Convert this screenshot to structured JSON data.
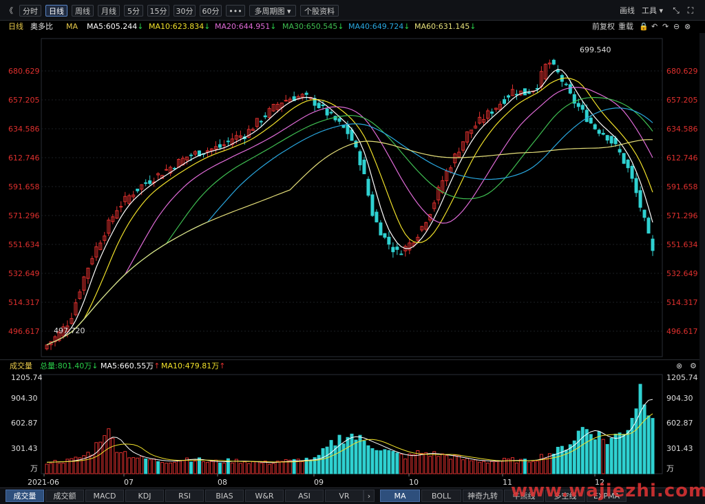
{
  "toolbar": {
    "back": "《",
    "tabs": [
      "分时",
      "日线",
      "周线",
      "月线",
      "5分",
      "15分",
      "30分",
      "60分",
      "•••",
      "多周期图 ▾",
      "个股资料"
    ],
    "active_tab": "日线",
    "right_draw": "画线",
    "right_tools": "工具 ▾",
    "expand_icon": "expand-arrows-icon",
    "fullscreen_icon": "fullscreen-icon"
  },
  "info": {
    "period": "日线",
    "name": "奥多比",
    "ma_label": "MA",
    "ma5": "MA5:605.244",
    "ma10": "MA10:623.834",
    "ma20": "MA20:644.951",
    "ma30": "MA30:650.545",
    "ma40": "MA40:649.724",
    "ma60": "MA60:631.145",
    "arrow_down": "↓",
    "adjust": "前复权",
    "reset": "重载",
    "colors": {
      "ma5": "#ffffff",
      "ma10": "#f2e22a",
      "ma20": "#e06bd8",
      "ma30": "#3fbf52",
      "ma40": "#29a8e0",
      "ma60": "#e6e07a"
    }
  },
  "price_axis": {
    "ticks": [
      "680.629",
      "657.205",
      "634.586",
      "612.746",
      "591.658",
      "571.296",
      "551.634",
      "532.649",
      "514.317",
      "496.617"
    ],
    "high_label": "699.540",
    "low_label": "497.720"
  },
  "volume": {
    "label": "成交量",
    "total": "总量:801.40万",
    "ma5": "MA5:660.55万",
    "ma10": "MA10:479.81万",
    "arrow_down": "↓",
    "arrow_up": "↑",
    "ticks": [
      "1205.74",
      "904.30",
      "602.87",
      "301.43"
    ],
    "unit": "万"
  },
  "date_axis": [
    "2021-06",
    "07",
    "08",
    "09",
    "10",
    "11",
    "12"
  ],
  "bottom_tabs_left": [
    "成交量",
    "成交额",
    "MACD",
    "KDJ",
    "RSI",
    "BIAS",
    "W&R",
    "ASI",
    "VR"
  ],
  "bottom_tabs_right": [
    "MA",
    "BOLL",
    "神奇九转",
    "牛熊线",
    "多空线",
    "EXPMA"
  ],
  "watermark": "www.wajiezhi.com",
  "chart_data": {
    "type": "candlestick",
    "series_colors": {
      "up": "#e0302e",
      "down": "#2fd1d1"
    },
    "ylim": [
      490,
      705
    ],
    "x": [
      "2021-06",
      "07",
      "08",
      "09",
      "10",
      "11",
      "12"
    ],
    "price_path": [
      498,
      505,
      515,
      540,
      560,
      575,
      590,
      598,
      605,
      610,
      615,
      620,
      625,
      628,
      630,
      632,
      638,
      640,
      648,
      655,
      662,
      665,
      666,
      662,
      655,
      648,
      640,
      620,
      585,
      570,
      560,
      565,
      575,
      590,
      610,
      625,
      640,
      648,
      655,
      662,
      670,
      668,
      672,
      690,
      680,
      665,
      655,
      645,
      640,
      630,
      615,
      590,
      560
    ],
    "volume_path": [
      150,
      160,
      170,
      220,
      300,
      600,
      350,
      250,
      200,
      180,
      160,
      170,
      200,
      180,
      150,
      160,
      170,
      160,
      150,
      140,
      170,
      160,
      190,
      180,
      320,
      450,
      520,
      430,
      380,
      300,
      250,
      220,
      280,
      260,
      240,
      220,
      180,
      170,
      160,
      170,
      180,
      160,
      200,
      260,
      300,
      420,
      600,
      550,
      420,
      500,
      650,
      1150,
      820
    ],
    "volume_ylim": [
      0,
      1300
    ]
  }
}
